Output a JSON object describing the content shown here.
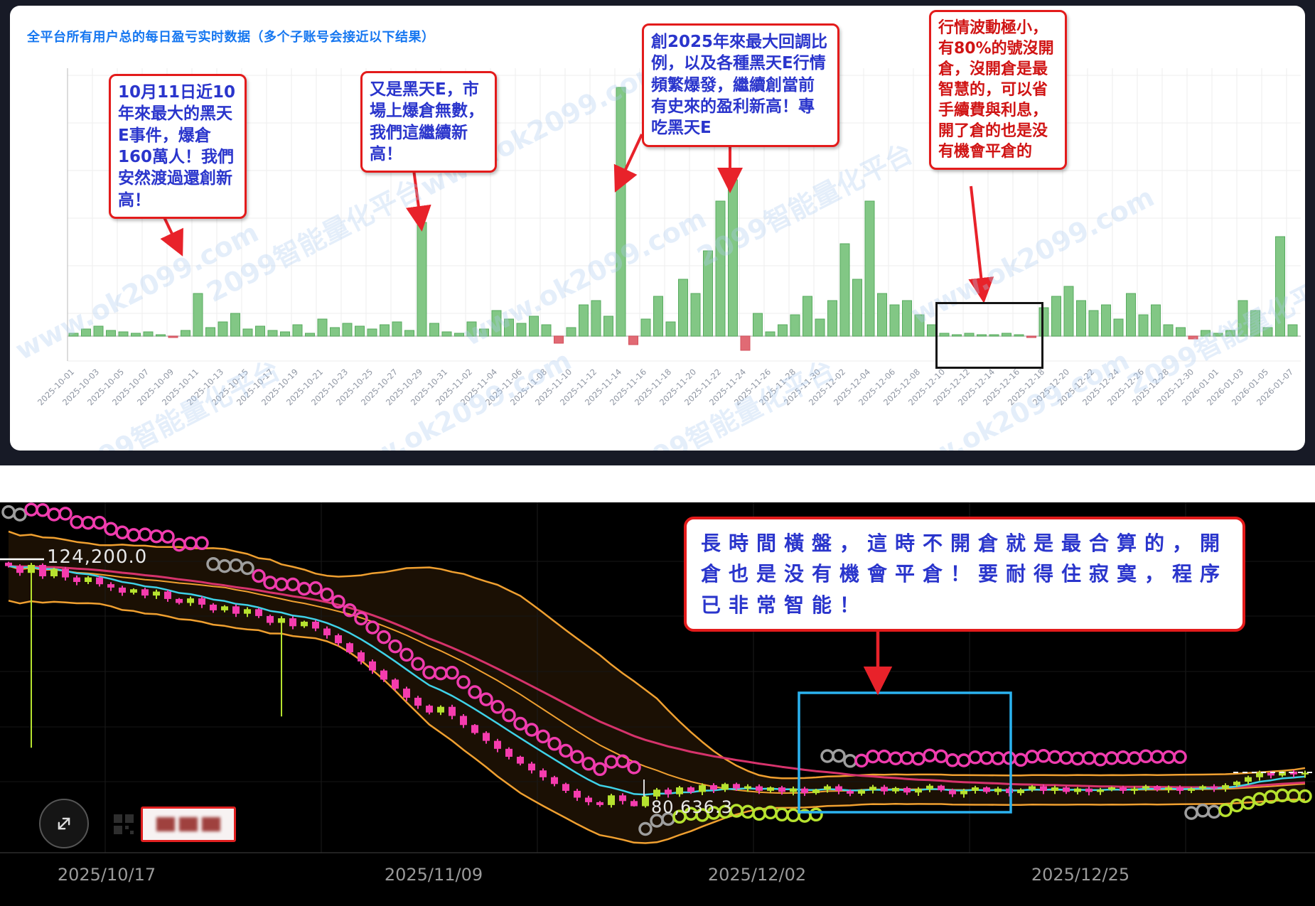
{
  "top_panel": {
    "title": "全平台所有用户总的每日盈亏实时数据（多个子账号会接近以下结果）",
    "watermarks": [
      "www.ok2099.com",
      "2099智能量化平台"
    ],
    "annotations": [
      {
        "id": 1,
        "color": "#2a35cc",
        "text": "10月11日近10年來最大的黑天E事件，爆倉160萬人！我們安然渡過還創新高！"
      },
      {
        "id": 2,
        "color": "#2a35cc",
        "text": "又是黑天E，市場上爆倉無數，我們這繼續新高！"
      },
      {
        "id": 3,
        "color": "#2a35cc",
        "text": "創2025年來最大回調比例，以及各種黑天E行情頻繁爆發，繼續創當前有史來的盈利新高！專吃黑天E"
      },
      {
        "id": 4,
        "color": "#d01414",
        "text": "行情波動極小，有80%的號沒開倉，沒開倉是最智慧的，可以省手續費與利息，開了倉的也是没有機會平倉的"
      }
    ]
  },
  "bottom_panel": {
    "annotation": {
      "text": "長時間橫盤，這時不開倉就是最合算的，開倉也是没有機會平倉！要耐得住寂寞，程序已非常智能！"
    }
  },
  "chart_data": [
    {
      "type": "bar",
      "title": "全平台所有用户总的每日盈亏实时数据（多个子账号会接近以下结果）",
      "xlabel": "",
      "ylabel": "",
      "date_start": "2025-10-01",
      "date_end": "2026-01-07",
      "unit": "relative daily profit (visual estimate, green=gain red=loss)",
      "grid": true,
      "bar_color_positive": "#82c785",
      "bar_color_negative": "#e16a74",
      "tick_labels": [
        "2025-10-01",
        "2025-10-03",
        "2025-10-05",
        "2025-10-07",
        "2025-10-09",
        "2025-10-11",
        "2025-10-13",
        "2025-10-15",
        "2025-10-17",
        "2025-10-19",
        "2025-10-21",
        "2025-10-23",
        "2025-10-25",
        "2025-10-27",
        "2025-10-29",
        "2025-10-31",
        "2025-11-02",
        "2025-11-04",
        "2025-11-06",
        "2025-11-08",
        "2025-11-10",
        "2025-11-12",
        "2025-11-14",
        "2025-11-16",
        "2025-11-18",
        "2025-11-20",
        "2025-11-22",
        "2025-11-24",
        "2025-11-26",
        "2025-11-28",
        "2025-11-30",
        "2025-12-02",
        "2025-12-04",
        "2025-12-06",
        "2025-12-08",
        "2025-12-10",
        "2025-12-12",
        "2025-12-14",
        "2025-12-16",
        "2025-12-18",
        "2025-12-20",
        "2025-12-22",
        "2025-12-24",
        "2025-12-26",
        "2025-12-28",
        "2025-12-30",
        "2026-01-01",
        "2026-01-03",
        "2026-01-05",
        "2026-01-07"
      ],
      "values": [
        2,
        5,
        7,
        4,
        3,
        2,
        3,
        1,
        -1,
        4,
        30,
        6,
        10,
        16,
        5,
        7,
        4,
        3,
        8,
        2,
        12,
        6,
        9,
        7,
        5,
        8,
        10,
        4,
        80,
        9,
        3,
        2,
        10,
        5,
        18,
        12,
        9,
        14,
        8,
        -5,
        6,
        22,
        25,
        14,
        175,
        -6,
        12,
        28,
        10,
        40,
        30,
        60,
        95,
        110,
        -10,
        16,
        3,
        8,
        15,
        28,
        12,
        25,
        65,
        40,
        95,
        30,
        22,
        25,
        15,
        8,
        2,
        1,
        2,
        1,
        1,
        2,
        1,
        -1,
        20,
        28,
        35,
        25,
        18,
        22,
        12,
        30,
        15,
        22,
        8,
        6,
        -2,
        4,
        2,
        4,
        25,
        18,
        6,
        70,
        8
      ]
    },
    {
      "type": "candlestick",
      "x_labels": [
        "2025/10/17",
        "2025/11/09",
        "2025/12/02",
        "2025/12/25"
      ],
      "price_label_high": "124,200.0",
      "price_label_low": "80,636.3",
      "ylim": [
        78000,
        130000
      ],
      "closes_k": [
        123.0,
        121.8,
        123.2,
        121.2,
        122.5,
        121.0,
        120.2,
        121.0,
        119.8,
        119.2,
        118.3,
        118.9,
        117.8,
        118.5,
        117.2,
        116.5,
        117.3,
        116.2,
        115.2,
        115.9,
        114.6,
        115.4,
        114.2,
        113.0,
        113.8,
        112.4,
        113.2,
        112.0,
        110.8,
        109.4,
        107.8,
        106.2,
        104.6,
        103.0,
        101.4,
        99.8,
        98.4,
        97.2,
        98.2,
        96.6,
        95.0,
        93.6,
        92.2,
        90.8,
        89.4,
        88.2,
        87.0,
        85.8,
        84.6,
        83.4,
        82.2,
        81.4,
        80.9,
        82.6,
        81.6,
        80.7,
        82.4,
        83.6,
        82.8,
        84.0,
        83.2,
        84.4,
        83.6,
        84.6,
        83.8,
        84.2,
        83.4,
        84.0,
        83.2,
        83.8,
        83.0,
        83.6,
        84.2,
        83.4,
        82.9,
        83.5,
        84.1,
        83.3,
        83.9,
        83.1,
        83.7,
        84.3,
        83.5,
        82.8,
        83.4,
        84.0,
        83.2,
        83.8,
        83.0,
        83.6,
        84.2,
        83.4,
        84.0,
        83.2,
        83.8,
        83.2,
        83.6,
        84.0,
        83.4,
        83.8,
        84.2,
        83.6,
        84.0,
        83.4,
        83.8,
        84.2,
        83.8,
        84.4,
        85.0,
        85.8,
        86.6,
        86.1,
        86.8,
        86.3,
        86.6
      ],
      "low_overrides": {
        "2": 91.0,
        "24": 96.5,
        "55": 80.636
      },
      "colors": {
        "up": "#b6e22f",
        "down": "#f53cae",
        "band": "#f0a030",
        "band_fill": "rgba(150,90,20,0.18)",
        "ema_fast": "#3fd2e8",
        "ema_slow": "#d6336c",
        "sar_down": "#f03cae",
        "sar_up": "#b6e22f",
        "sar_flip": "#9e9e9e",
        "highlight_box": "#2bb3f0",
        "arrow": "#e8222a"
      },
      "sar_segments": [
        {
          "from": 0,
          "to": 1,
          "side": "above",
          "color": "sar_flip",
          "offset": 70
        },
        {
          "from": 2,
          "to": 17,
          "side": "above",
          "color": "sar_down",
          "offset": 75
        },
        {
          "from": 18,
          "to": 21,
          "side": "above",
          "color": "sar_flip",
          "offset": 55
        },
        {
          "from": 22,
          "to": 55,
          "side": "above",
          "color": "sar_down",
          "offset": 45
        },
        {
          "from": 56,
          "to": 58,
          "side": "below",
          "color": "sar_flip",
          "offset": 30
        },
        {
          "from": 59,
          "to": 71,
          "side": "below",
          "color": "sar_up",
          "offset": 28
        },
        {
          "from": 72,
          "to": 74,
          "side": "above",
          "color": "sar_flip",
          "offset": 40
        },
        {
          "from": 75,
          "to": 103,
          "side": "above",
          "color": "sar_down",
          "offset": 40
        },
        {
          "from": 104,
          "to": 106,
          "side": "below",
          "color": "sar_flip",
          "offset": 28
        },
        {
          "from": 107,
          "to": 114,
          "side": "below",
          "color": "sar_up",
          "offset": 26
        }
      ]
    }
  ]
}
